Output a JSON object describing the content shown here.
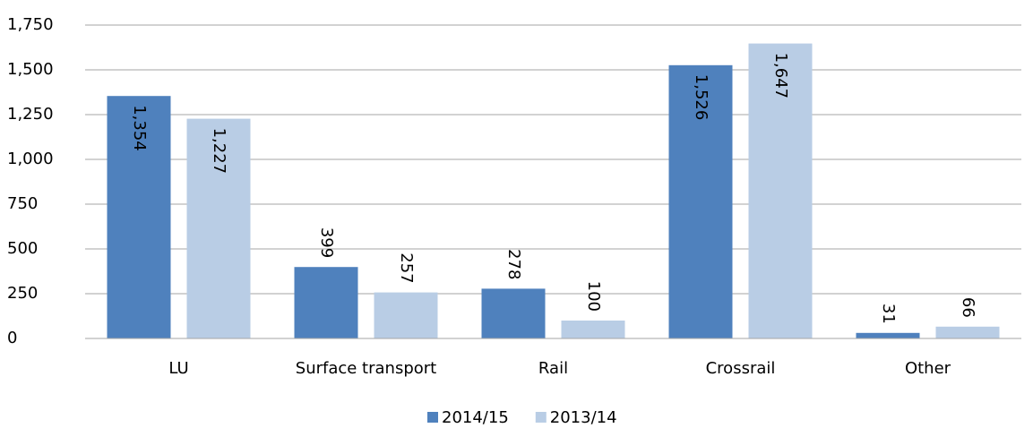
{
  "chart_data": {
    "type": "bar",
    "categories": [
      "LU",
      "Surface transport",
      "Rail",
      "Crossrail",
      "Other"
    ],
    "series": [
      {
        "name": "2014/15",
        "color": "#4f81bd",
        "values": [
          1354,
          399,
          278,
          1526,
          31
        ],
        "value_labels": [
          "1,354",
          "399",
          "278",
          "1,526",
          "31"
        ]
      },
      {
        "name": "2013/14",
        "color": "#b9cde5",
        "values": [
          1227,
          257,
          100,
          1647,
          66
        ],
        "value_labels": [
          "1,227",
          "257",
          "100",
          "1,647",
          "66"
        ]
      }
    ],
    "ylim": [
      0,
      1750
    ],
    "yticks": [
      0,
      250,
      500,
      750,
      {
        "value": 1000,
        "label": "1,000"
      },
      {
        "value": 1250,
        "label": "1,250"
      },
      {
        "value": 1500,
        "label": "1,500"
      },
      {
        "value": 1750,
        "label": "1,750"
      }
    ],
    "grid": true,
    "legend": "bottom"
  }
}
